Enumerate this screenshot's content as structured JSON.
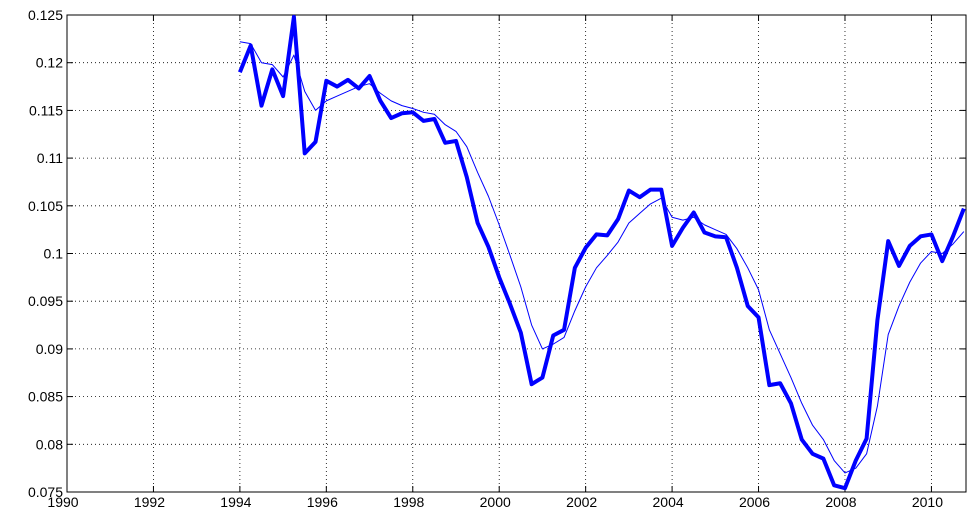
{
  "chart_data": {
    "type": "line",
    "x": [
      1994,
      1994.25,
      1994.5,
      1994.75,
      1995,
      1995.25,
      1995.5,
      1995.75,
      1996,
      1996.25,
      1996.5,
      1996.75,
      1997,
      1997.25,
      1997.5,
      1997.75,
      1998,
      1998.25,
      1998.5,
      1998.75,
      1999,
      1999.25,
      1999.5,
      1999.75,
      2000,
      2000.25,
      2000.5,
      2000.75,
      2001,
      2001.25,
      2001.5,
      2001.75,
      2002,
      2002.25,
      2002.5,
      2002.75,
      2003,
      2003.25,
      2003.5,
      2003.75,
      2004,
      2004.25,
      2004.5,
      2004.75,
      2005,
      2005.25,
      2005.5,
      2005.75,
      2006,
      2006.25,
      2006.5,
      2006.75,
      2007,
      2007.25,
      2007.5,
      2007.75,
      2008,
      2008.25,
      2008.5,
      2008.75,
      2009,
      2009.25,
      2009.5,
      2009.75,
      2010,
      2010.25,
      2010.5,
      2010.75
    ],
    "series": [
      {
        "color": "#0000ff",
        "width": 4,
        "values": [
          0.119,
          0.1218,
          0.1155,
          0.1193,
          0.1165,
          0.1248,
          0.1105,
          0.1117,
          0.1181,
          0.1175,
          0.1182,
          0.1173,
          0.1186,
          0.116,
          0.1142,
          0.1147,
          0.1148,
          0.1139,
          0.1141,
          0.1116,
          0.1118,
          0.108,
          0.1032,
          0.1007,
          0.0975,
          0.0947,
          0.0917,
          0.0863,
          0.087,
          0.0914,
          0.092,
          0.0985,
          0.1006,
          0.102,
          0.1019,
          0.1036,
          0.1066,
          0.1059,
          0.1067,
          0.1067,
          0.1008,
          0.1027,
          0.1043,
          0.1022,
          0.1018,
          0.1017,
          0.0985,
          0.0945,
          0.0933,
          0.0862,
          0.0864,
          0.0843,
          0.0805,
          0.079,
          0.0785,
          0.0757,
          0.0754,
          0.0783,
          0.0806,
          0.093,
          0.1013,
          0.0987,
          0.1008,
          0.1018,
          0.102,
          0.0992,
          0.1018,
          0.1047
        ]
      },
      {
        "color": "#0000ff",
        "width": 1,
        "values": [
          0.1222,
          0.122,
          0.12,
          0.1198,
          0.1185,
          0.1208,
          0.117,
          0.115,
          0.116,
          0.1165,
          0.117,
          0.1175,
          0.1178,
          0.1168,
          0.116,
          0.1155,
          0.1152,
          0.1148,
          0.1146,
          0.1135,
          0.1128,
          0.1112,
          0.1085,
          0.106,
          0.103,
          0.0998,
          0.0965,
          0.0925,
          0.09,
          0.0905,
          0.0912,
          0.094,
          0.0965,
          0.0985,
          0.0998,
          0.1012,
          0.1032,
          0.1042,
          0.1052,
          0.1058,
          0.1038,
          0.1035,
          0.1038,
          0.103,
          0.1025,
          0.102,
          0.1005,
          0.0985,
          0.0962,
          0.092,
          0.0895,
          0.087,
          0.0843,
          0.082,
          0.0805,
          0.0783,
          0.077,
          0.0775,
          0.079,
          0.084,
          0.0915,
          0.0945,
          0.097,
          0.099,
          0.1002,
          0.1,
          0.101,
          0.1023
        ]
      }
    ],
    "xlim": [
      1990,
      2010.8
    ],
    "xticks": [
      1990,
      1992,
      1994,
      1996,
      1998,
      2000,
      2002,
      2004,
      2006,
      2008,
      2010
    ],
    "ylim": [
      0.075,
      0.125
    ],
    "yticks": [
      0.075,
      0.08,
      0.085,
      0.09,
      0.095,
      0.1,
      0.105,
      0.11,
      0.115,
      0.12,
      0.125
    ],
    "grid": true
  }
}
